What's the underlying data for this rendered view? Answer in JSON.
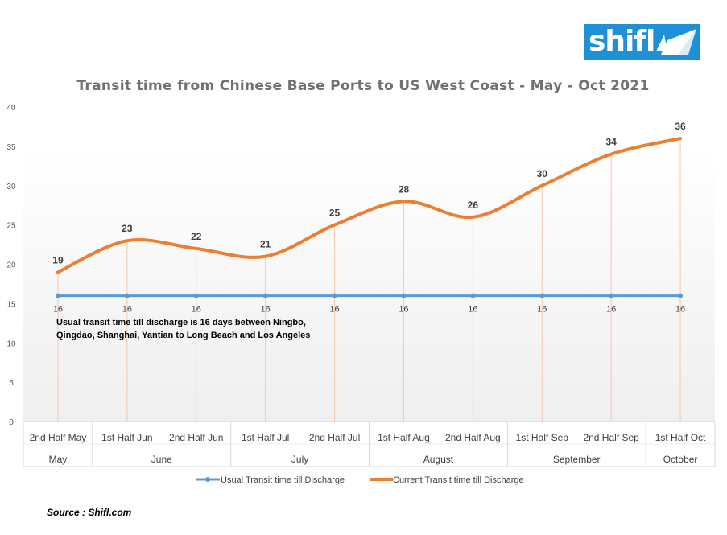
{
  "logo": {
    "text": "shifl",
    "color": "#1f8fd6"
  },
  "source": "Source : Shifl.com",
  "chart_data": {
    "type": "line",
    "title": "Transit time from Chinese Base Ports to US West Coast - May - Oct 2021",
    "categories": [
      "2nd Half May",
      "1st Half Jun",
      "2nd Half Jun",
      "1st Half Jul",
      "2nd Half Jul",
      "1st Half Aug",
      "2nd Half Aug",
      "1st Half Sep",
      "2nd Half  Sep",
      "1st Half Oct"
    ],
    "groups": [
      {
        "label": "May",
        "span": 1
      },
      {
        "label": "June",
        "span": 2
      },
      {
        "label": "July",
        "span": 2
      },
      {
        "label": "August",
        "span": 2
      },
      {
        "label": "September",
        "span": 2
      },
      {
        "label": "October",
        "span": 1
      }
    ],
    "series": [
      {
        "name": "Usual Transit time till Discharge",
        "color": "#5b9bd5",
        "values": [
          16,
          16,
          16,
          16,
          16,
          16,
          16,
          16,
          16,
          16
        ],
        "smooth": false
      },
      {
        "name": "Current Transit time till Discharge",
        "color": "#ed7d31",
        "values": [
          19,
          23,
          22,
          21,
          25,
          28,
          26,
          30,
          34,
          36
        ],
        "smooth": true
      }
    ],
    "ylim": [
      0,
      40
    ],
    "yticks": [
      0,
      5,
      10,
      15,
      20,
      25,
      30,
      35,
      40
    ],
    "annotation": [
      "Usual transit time till discharge is 16 days between Ningbo,",
      "Qingdao, Shanghai, Yantian to Long Beach and Los Angeles"
    ],
    "legend": "bottom",
    "grid": false
  }
}
